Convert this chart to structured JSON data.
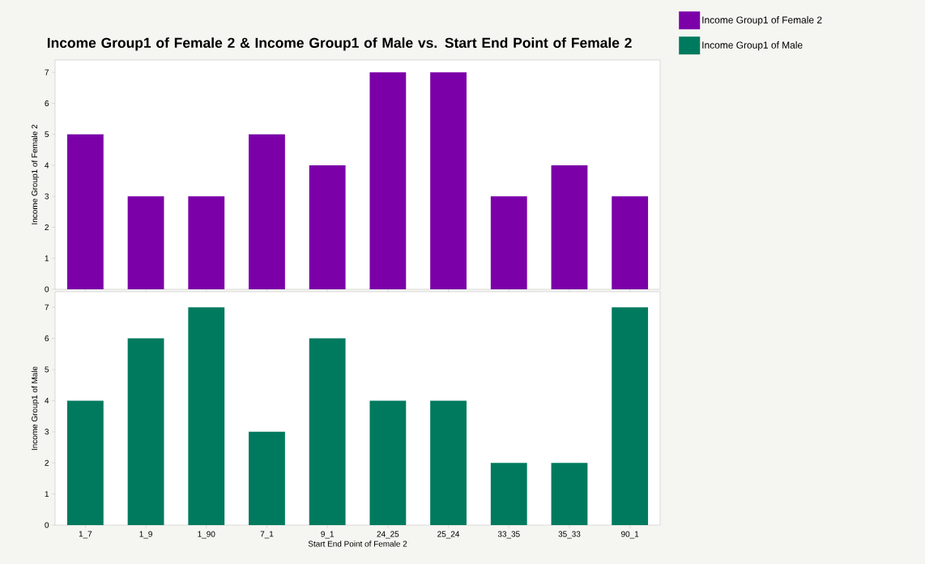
{
  "chart_data": [
    {
      "type": "bar",
      "title": "Income Group1 of Female 2 & Income Group1 of Male vs. Start End Point of Female 2",
      "categories": [
        null,
        null,
        null,
        null,
        null,
        null,
        null,
        null,
        null,
        null
      ],
      "series": [
        {
          "name": "Income Group1 of Female 2",
          "color": "#7b00a8",
          "values": [
            5,
            3,
            3,
            5,
            4,
            7,
            7,
            3,
            4,
            3
          ]
        }
      ],
      "ylabel": "Income Group1 of Female 2",
      "ylim": [
        0,
        7.4
      ],
      "yticks": [
        0,
        1,
        2,
        3,
        4,
        5,
        6,
        7
      ],
      "legend": "top right",
      "tick_labels": "y"
    },
    {
      "type": "bar",
      "categories": [
        "1_7",
        "1_9",
        "1_90",
        "7_1",
        "9_1",
        "24_25",
        "25_24",
        "33_35",
        "35_33",
        "90_1"
      ],
      "series": [
        {
          "name": "Income Group1 of Male",
          "color": "#007a5e",
          "values": [
            4,
            6,
            7,
            3,
            6,
            4,
            4,
            2,
            2,
            7
          ]
        }
      ],
      "xlabel": "Start End Point of Female 2",
      "ylabel": "Income Group1 of Male",
      "ylim": [
        0,
        7.5
      ],
      "yticks": [
        0,
        1,
        2,
        3,
        4,
        5,
        6,
        7
      ],
      "legend": "top right"
    }
  ]
}
